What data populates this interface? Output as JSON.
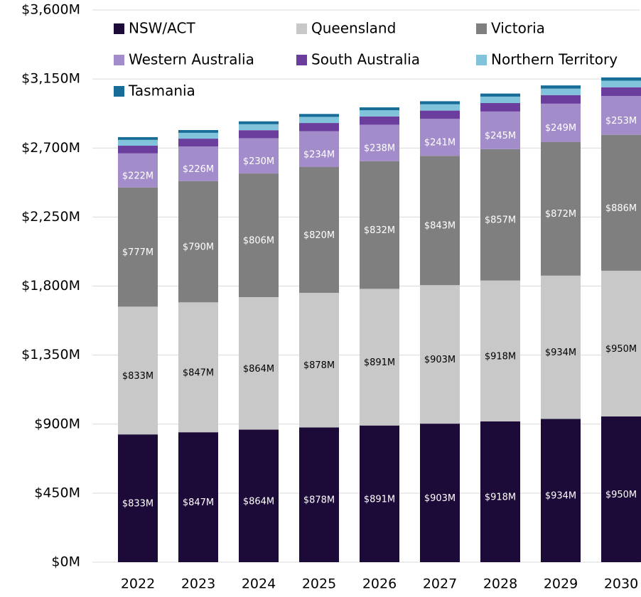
{
  "chart_data": {
    "type": "stacked_bar",
    "categories": [
      "2022",
      "2023",
      "2024",
      "2025",
      "2026",
      "2027",
      "2028",
      "2029",
      "2030"
    ],
    "series": [
      {
        "name": "NSW/ACT",
        "color": "#1c0b38",
        "values": [
          833,
          847,
          864,
          878,
          891,
          903,
          918,
          934,
          950
        ],
        "value_labels": [
          "$833M",
          "$847M",
          "$864M",
          "$878M",
          "$891M",
          "$903M",
          "$918M",
          "$934M",
          "$950M"
        ]
      },
      {
        "name": "Queensland",
        "color": "#c8c8c8",
        "values": [
          833,
          847,
          864,
          878,
          891,
          903,
          918,
          934,
          950
        ],
        "value_labels": [
          "$833M",
          "$847M",
          "$864M",
          "$878M",
          "$891M",
          "$903M",
          "$918M",
          "$934M",
          "$950M"
        ]
      },
      {
        "name": "Victoria",
        "color": "#7f7f7f",
        "values": [
          777,
          790,
          806,
          820,
          832,
          843,
          857,
          872,
          886
        ],
        "value_labels": [
          "$777M",
          "$790M",
          "$806M",
          "$820M",
          "$832M",
          "$843M",
          "$857M",
          "$872M",
          "$886M"
        ]
      },
      {
        "name": "Western Australia",
        "color": "#a28dca",
        "values": [
          222,
          226,
          230,
          234,
          238,
          241,
          245,
          249,
          253
        ],
        "value_labels": [
          "$222M",
          "$226M",
          "$230M",
          "$234M",
          "$238M",
          "$241M",
          "$245M",
          "$249M",
          "$253M"
        ]
      },
      {
        "name": "South Australia",
        "color": "#6b3d9c",
        "values": [
          50,
          51,
          52,
          53,
          54,
          54,
          55,
          56,
          57
        ]
      },
      {
        "name": "Northern Territory",
        "color": "#82c3dc",
        "values": [
          38,
          38,
          39,
          40,
          40,
          41,
          42,
          42,
          43
        ]
      },
      {
        "name": "Tasmania",
        "color": "#176c98",
        "values": [
          18,
          18,
          19,
          19,
          19,
          20,
          20,
          21,
          21
        ]
      }
    ],
    "ylim": [
      0,
      3600
    ],
    "yticks": [
      {
        "value": 0,
        "label": "$0M"
      },
      {
        "value": 450,
        "label": "$450M"
      },
      {
        "value": 900,
        "label": "$900M"
      },
      {
        "value": 1350,
        "label": "$1,350M"
      },
      {
        "value": 1800,
        "label": "$1,800M"
      },
      {
        "value": 2250,
        "label": "$2,250M"
      },
      {
        "value": 2700,
        "label": "$2,700M"
      },
      {
        "value": 3150,
        "label": "$3,150M"
      },
      {
        "value": 3600,
        "label": "$3,600M"
      }
    ],
    "grid": true,
    "legend": "top"
  }
}
